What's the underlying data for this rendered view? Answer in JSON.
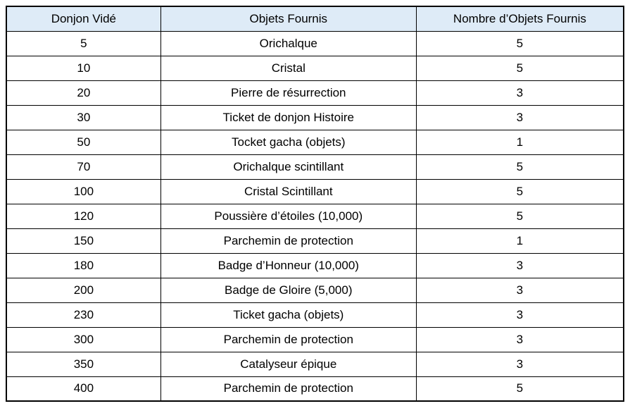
{
  "chart_data": {
    "type": "table",
    "columns": [
      "Donjon Vidé",
      "Objets Fournis",
      "Nombre d’Objets Fournis"
    ],
    "rows": [
      [
        "5",
        "Orichalque",
        "5"
      ],
      [
        "10",
        "Cristal",
        "5"
      ],
      [
        "20",
        "Pierre de résurrection",
        "3"
      ],
      [
        "30",
        "Ticket de donjon Histoire",
        "3"
      ],
      [
        "50",
        "Tocket gacha (objets)",
        "1"
      ],
      [
        "70",
        "Orichalque scintillant",
        "5"
      ],
      [
        "100",
        "Cristal Scintillant",
        "5"
      ],
      [
        "120",
        "Poussière d’étoiles (10,000)",
        "5"
      ],
      [
        "150",
        "Parchemin de protection",
        "1"
      ],
      [
        "180",
        "Badge d’Honneur (10,000)",
        "3"
      ],
      [
        "200",
        "Badge de Gloire (5,000)",
        "3"
      ],
      [
        "230",
        "Ticket gacha (objets)",
        "3"
      ],
      [
        "300",
        "Parchemin de protection",
        "3"
      ],
      [
        "350",
        "Catalyseur épique",
        "3"
      ],
      [
        "400",
        "Parchemin de protection",
        "5"
      ]
    ],
    "style": {
      "header_bg": "#deebf7",
      "border_color": "#000000",
      "text_color": "#000000"
    }
  }
}
